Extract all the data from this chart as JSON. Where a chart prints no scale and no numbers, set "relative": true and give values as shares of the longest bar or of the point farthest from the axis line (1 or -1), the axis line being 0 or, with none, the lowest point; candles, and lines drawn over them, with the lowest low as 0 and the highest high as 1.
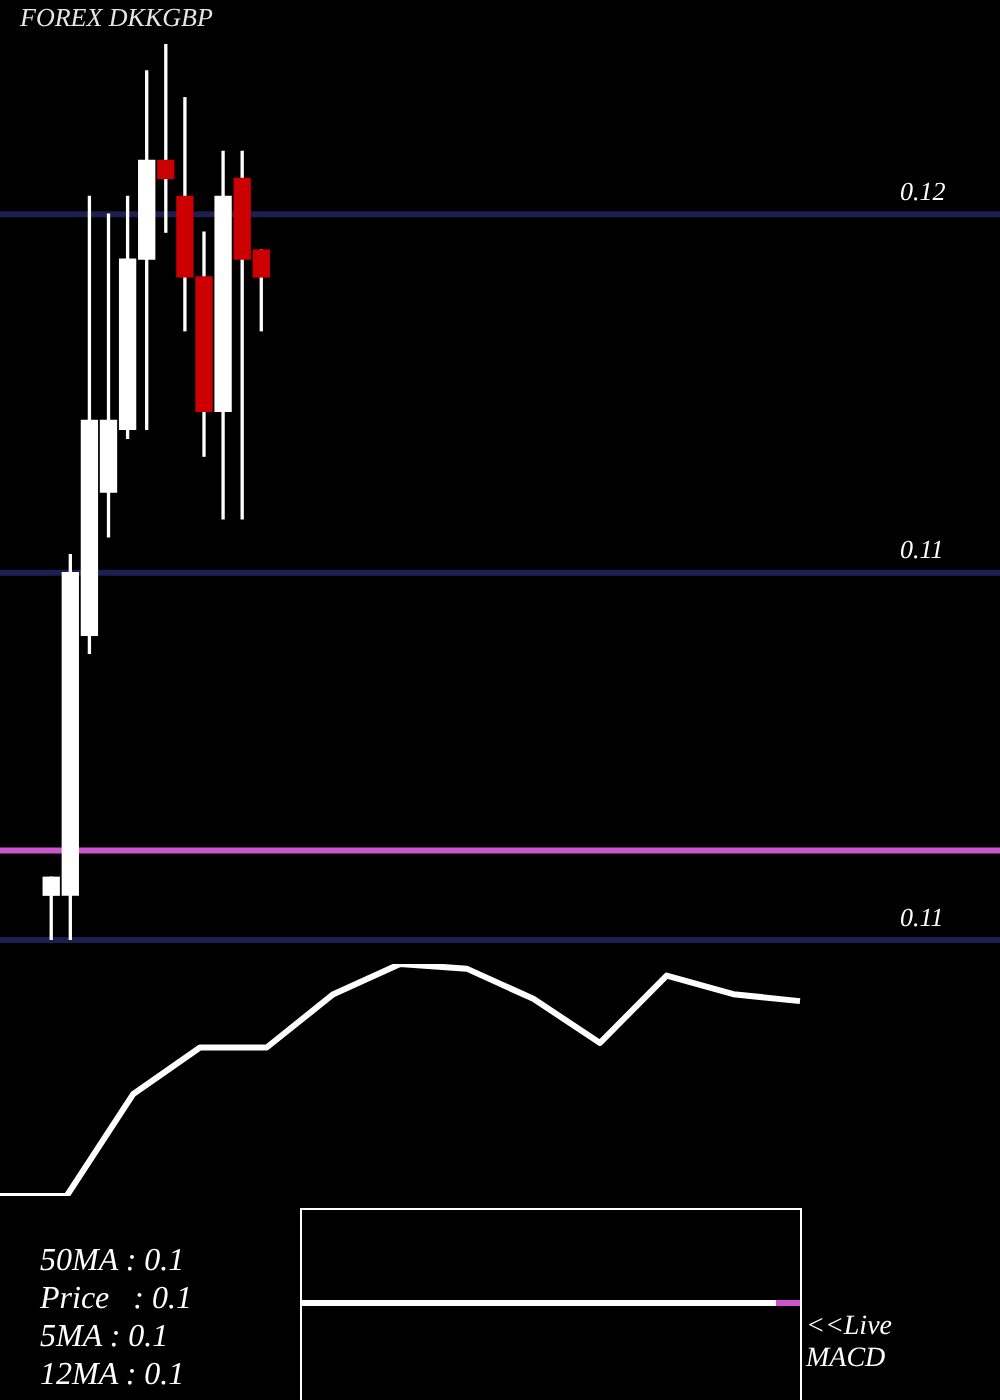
{
  "chart_data": [
    {
      "type": "candlestick",
      "title": "FOREX DKKGBP",
      "relative": true,
      "categories": [
        null,
        null,
        null,
        null,
        null,
        null,
        null,
        null,
        null,
        null,
        null,
        null
      ],
      "ohlc": [
        [
          0.05,
          0.07,
          0,
          0.07
        ],
        [
          0.05,
          0.43,
          0,
          0.41
        ],
        [
          0.34,
          0.83,
          0.32,
          0.58
        ],
        [
          0.5,
          0.81,
          0.45,
          0.58
        ],
        [
          0.57,
          0.83,
          0.56,
          0.76
        ],
        [
          0.76,
          0.97,
          0.57,
          0.87
        ],
        [
          0.87,
          1,
          0.79,
          0.85
        ],
        [
          0.83,
          0.94,
          0.68,
          0.74
        ],
        [
          0.74,
          0.79,
          0.54,
          0.59
        ],
        [
          0.59,
          0.88,
          0.47,
          0.83
        ],
        [
          0.85,
          0.88,
          0.47,
          0.76
        ],
        [
          0.77,
          0.77,
          0.68,
          0.74
        ]
      ],
      "colors": [
        "#ffffff",
        "#ffffff",
        "#ffffff",
        "#ffffff",
        "#ffffff",
        "#ffffff",
        "#cc0000",
        "#cc0000",
        "#cc0000",
        "#ffffff",
        "#cc0000",
        "#cc0000"
      ],
      "ref_lines": [
        {
          "axis": "y",
          "value": 0.81,
          "color": "#1e1e50"
        },
        {
          "axis": "y",
          "value": 0.41,
          "color": "#1e1e50"
        },
        {
          "axis": "y",
          "value": 0.1,
          "color": "#cc55cc"
        },
        {
          "axis": "y",
          "value": 0,
          "color": "#1e1e50"
        }
      ],
      "annotations": [
        "0.12",
        "0.11",
        "0.11"
      ]
    },
    {
      "type": "line",
      "relative": true,
      "categories": [
        null,
        null,
        null,
        null,
        null,
        null,
        null,
        null,
        null,
        null,
        null,
        null,
        null
      ],
      "marker": "none",
      "series": [
        {
          "color": "#ffffff",
          "values": [
            0,
            0,
            0.44,
            0.64,
            0.64,
            0.87,
            1,
            0.98,
            0.85,
            0.66,
            0.95,
            0.87,
            0.84
          ]
        }
      ],
      "annotations": [
        "50MA : 0.1",
        "Price   : 0.1",
        "5MA : 0.1",
        "12MA : 0.1",
        "<<Live MACD"
      ]
    }
  ]
}
